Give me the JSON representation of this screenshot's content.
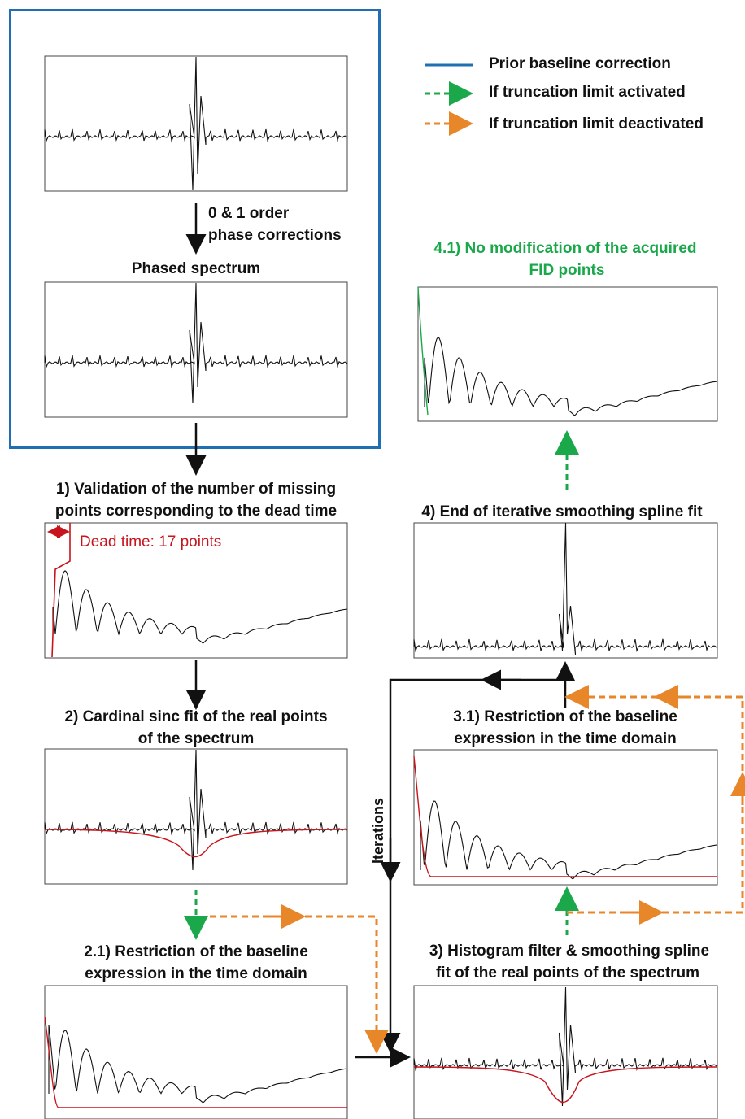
{
  "legend": {
    "prior": "Prior baseline correction",
    "activated": "If truncation limit activated",
    "deactivated": "If truncation limit deactivated"
  },
  "steps": {
    "phase_line1": "0 & 1 order",
    "phase_line2": "phase corrections",
    "phased": "Phased spectrum",
    "s1_line1": "1) Validation of the number of missing",
    "s1_line2": "points corresponding to the dead time",
    "dead_time": "Dead time: 17 points",
    "s2_line1": "2) Cardinal sinc fit of the real points",
    "s2_line2": "of the spectrum",
    "s21_line1": "2.1) Restriction of the baseline",
    "s21_line2": "expression in the time domain",
    "s3_line1": "3) Histogram filter & smoothing spline",
    "s3_line2": "fit of the real points of the spectrum",
    "s31_line1": "3.1) Restriction of the baseline",
    "s31_line2": "expression in the time domain",
    "s4": "4) End of iterative smoothing spline fit",
    "s41_line1": "4.1) No modification of the acquired",
    "s41_line2": "FID points",
    "iterations": "Iterations"
  },
  "colors": {
    "blue": "#1f6fb2",
    "green": "#1aa84a",
    "orange": "#e8862a",
    "red": "#c8141c",
    "black": "#111111"
  }
}
